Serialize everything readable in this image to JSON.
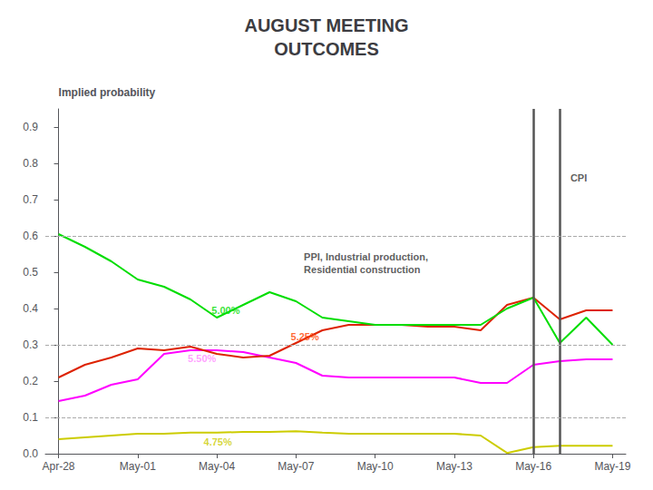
{
  "chart_data": {
    "type": "line",
    "title": "AUGUST MEETING\nOUTCOMES",
    "y_label": "Implied probability",
    "x": [
      0,
      1,
      2,
      3,
      4,
      5,
      6,
      7,
      8,
      9,
      10,
      11,
      12,
      13,
      14,
      15,
      16,
      17,
      18,
      19,
      20,
      21
    ],
    "xlim": [
      -0.5,
      21.5
    ],
    "xticks": [
      {
        "value": 0,
        "label": "Apr-28"
      },
      {
        "value": 3,
        "label": "May-01"
      },
      {
        "value": 6,
        "label": "May-04"
      },
      {
        "value": 9,
        "label": "May-07"
      },
      {
        "value": 12,
        "label": "May-10"
      },
      {
        "value": 15,
        "label": "May-13"
      },
      {
        "value": 18,
        "label": "May-16"
      },
      {
        "value": 21,
        "label": "May-19"
      }
    ],
    "ylim": [
      0.0,
      0.95
    ],
    "yticks": [
      {
        "value": 0,
        "label": "0.0"
      },
      0.1,
      0.2,
      0.3,
      0.4,
      0.5,
      0.6,
      0.7,
      0.8,
      0.9
    ],
    "grid": false,
    "series": [
      {
        "name": "4.75%",
        "color": "#CCCC00",
        "values": [
          0.04,
          0.045,
          0.05,
          0.055,
          0.055,
          0.058,
          0.058,
          0.06,
          0.06,
          0.062,
          0.058,
          0.055,
          0.055,
          0.055,
          0.055,
          0.055,
          0.05,
          0.002,
          0.018,
          0.022,
          0.022,
          0.022
        ]
      },
      {
        "name": "5.50%",
        "color": "#FF00FF",
        "values": [
          0.145,
          0.16,
          0.19,
          0.205,
          0.275,
          0.285,
          0.285,
          0.28,
          0.265,
          0.25,
          0.215,
          0.21,
          0.21,
          0.21,
          0.21,
          0.21,
          0.195,
          0.195,
          0.245,
          0.255,
          0.26,
          0.26
        ]
      },
      {
        "name": "5.25%",
        "color": "#DD2200",
        "values": [
          0.21,
          0.245,
          0.265,
          0.29,
          0.285,
          0.295,
          0.275,
          0.265,
          0.27,
          0.305,
          0.34,
          0.355,
          0.355,
          0.355,
          0.35,
          0.35,
          0.34,
          0.41,
          0.43,
          0.37,
          0.395,
          0.395
        ]
      },
      {
        "name": "5.00%",
        "color": "#00DD00",
        "values": [
          0.605,
          0.57,
          0.53,
          0.48,
          0.46,
          0.425,
          0.375,
          0.41,
          0.445,
          0.42,
          0.375,
          0.365,
          0.355,
          0.355,
          0.355,
          0.355,
          0.355,
          0.4,
          0.43,
          0.305,
          0.375,
          0.3
        ]
      }
    ],
    "reference_lines": [
      {
        "axis": "x",
        "values": [
          18,
          19
        ]
      },
      {
        "axis": "y",
        "values": [
          0.1,
          0.3,
          0.6
        ],
        "line_style": "dashed"
      }
    ],
    "annotations": [
      {
        "text": "5.00%",
        "x": 5.8,
        "y": 0.395,
        "color": "#00DD00"
      },
      {
        "text": "5.25%",
        "x": 8.8,
        "y": 0.322,
        "color": "#FF4400"
      },
      {
        "text": "5.50%",
        "x": 4.9,
        "y": 0.262,
        "color": "#FF88FF"
      },
      {
        "text": "4.75%",
        "x": 5.5,
        "y": 0.033,
        "color": "#CCCC00"
      },
      {
        "text": "CPI",
        "x": 19.4,
        "y": 0.76
      },
      {
        "text": "PPI, Industrial production,\nResidential construction",
        "x": 9.3,
        "y": 0.525
      }
    ]
  }
}
